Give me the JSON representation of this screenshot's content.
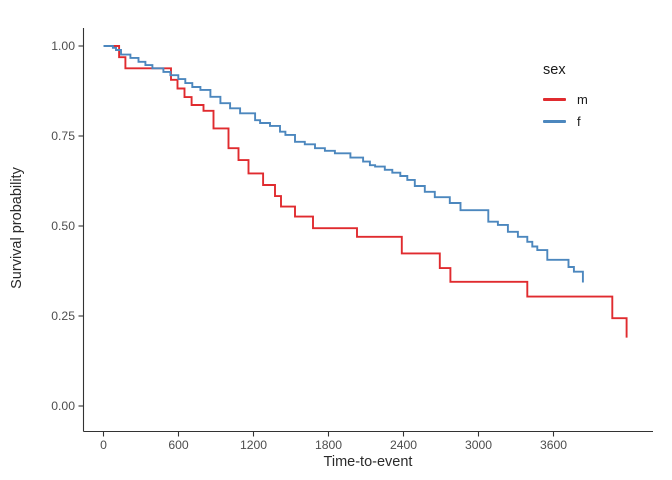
{
  "chart_data": {
    "type": "line",
    "subtype": "kaplan-meier-step-curve",
    "title": "",
    "xlabel": "Time-to-event",
    "ylabel": "Survival probability",
    "x_ticks": [
      0,
      600,
      1200,
      1800,
      2400,
      3000,
      3600
    ],
    "y_ticks": [
      0.0,
      0.25,
      0.5,
      0.75,
      1.0
    ],
    "xlim": [
      -160,
      4400
    ],
    "ylim": [
      0,
      1.05
    ],
    "grid": false,
    "axis_color": "#333333",
    "tick_label_color": "#4d4d4d",
    "legend": {
      "title": "sex",
      "position": "right-upper",
      "entries": [
        {
          "label": "m",
          "color": "#E02B2F"
        },
        {
          "label": "f",
          "color": "#4C87BE"
        }
      ]
    },
    "series": [
      {
        "name": "m",
        "color": "#E02B2F",
        "steps": [
          [
            0,
            1.0
          ],
          [
            125,
            0.969
          ],
          [
            175,
            0.938
          ],
          [
            540,
            0.906
          ],
          [
            592,
            0.882
          ],
          [
            648,
            0.858
          ],
          [
            705,
            0.836
          ],
          [
            800,
            0.82
          ],
          [
            880,
            0.771
          ],
          [
            1000,
            0.716
          ],
          [
            1080,
            0.683
          ],
          [
            1160,
            0.646
          ],
          [
            1277,
            0.614
          ],
          [
            1372,
            0.583
          ],
          [
            1420,
            0.554
          ],
          [
            1532,
            0.526
          ],
          [
            1676,
            0.494
          ],
          [
            2028,
            0.47
          ],
          [
            2386,
            0.424
          ],
          [
            2690,
            0.383
          ],
          [
            2775,
            0.345
          ],
          [
            3390,
            0.304
          ],
          [
            4070,
            0.244
          ],
          [
            4185,
            0.19
          ]
        ]
      },
      {
        "name": "f",
        "color": "#4C87BE",
        "steps": [
          [
            0,
            1.0
          ],
          [
            75,
            0.995
          ],
          [
            100,
            0.989
          ],
          [
            140,
            0.976
          ],
          [
            215,
            0.967
          ],
          [
            280,
            0.956
          ],
          [
            335,
            0.947
          ],
          [
            391,
            0.938
          ],
          [
            479,
            0.928
          ],
          [
            535,
            0.919
          ],
          [
            598,
            0.908
          ],
          [
            654,
            0.897
          ],
          [
            710,
            0.886
          ],
          [
            775,
            0.878
          ],
          [
            855,
            0.859
          ],
          [
            935,
            0.841
          ],
          [
            1013,
            0.827
          ],
          [
            1093,
            0.813
          ],
          [
            1213,
            0.794
          ],
          [
            1253,
            0.786
          ],
          [
            1332,
            0.778
          ],
          [
            1412,
            0.762
          ],
          [
            1455,
            0.753
          ],
          [
            1532,
            0.734
          ],
          [
            1610,
            0.727
          ],
          [
            1692,
            0.716
          ],
          [
            1771,
            0.709
          ],
          [
            1851,
            0.702
          ],
          [
            1975,
            0.69
          ],
          [
            2077,
            0.679
          ],
          [
            2131,
            0.669
          ],
          [
            2173,
            0.665
          ],
          [
            2250,
            0.656
          ],
          [
            2310,
            0.648
          ],
          [
            2374,
            0.639
          ],
          [
            2430,
            0.628
          ],
          [
            2490,
            0.611
          ],
          [
            2570,
            0.595
          ],
          [
            2650,
            0.58
          ],
          [
            2770,
            0.564
          ],
          [
            2856,
            0.544
          ],
          [
            3078,
            0.512
          ],
          [
            3155,
            0.503
          ],
          [
            3235,
            0.484
          ],
          [
            3315,
            0.47
          ],
          [
            3390,
            0.456
          ],
          [
            3430,
            0.443
          ],
          [
            3470,
            0.433
          ],
          [
            3550,
            0.406
          ],
          [
            3720,
            0.386
          ],
          [
            3763,
            0.373
          ],
          [
            3835,
            0.343
          ]
        ]
      }
    ]
  }
}
